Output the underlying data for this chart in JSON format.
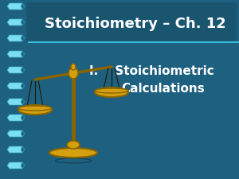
{
  "bg_color": "#1e6080",
  "title_text": "Stoichiometry – Ch. 12",
  "title_color": "#ffffff",
  "title_bg_color": "#1a5570",
  "title_separator_color": "#3ab8d8",
  "subtitle_line1": "I.    Stoichiometric",
  "subtitle_line2": "Calculations",
  "subtitle_color": "#ffffff",
  "spiral_light": "#7ae0f0",
  "spiral_mid": "#3ab0d0",
  "spiral_dark": "#1a6a8a",
  "scale_gold": "#d4a010",
  "scale_dark": "#8a6400",
  "scale_black": "#1a1a00",
  "figsize": [
    3.0,
    2.25
  ],
  "dpi": 100
}
